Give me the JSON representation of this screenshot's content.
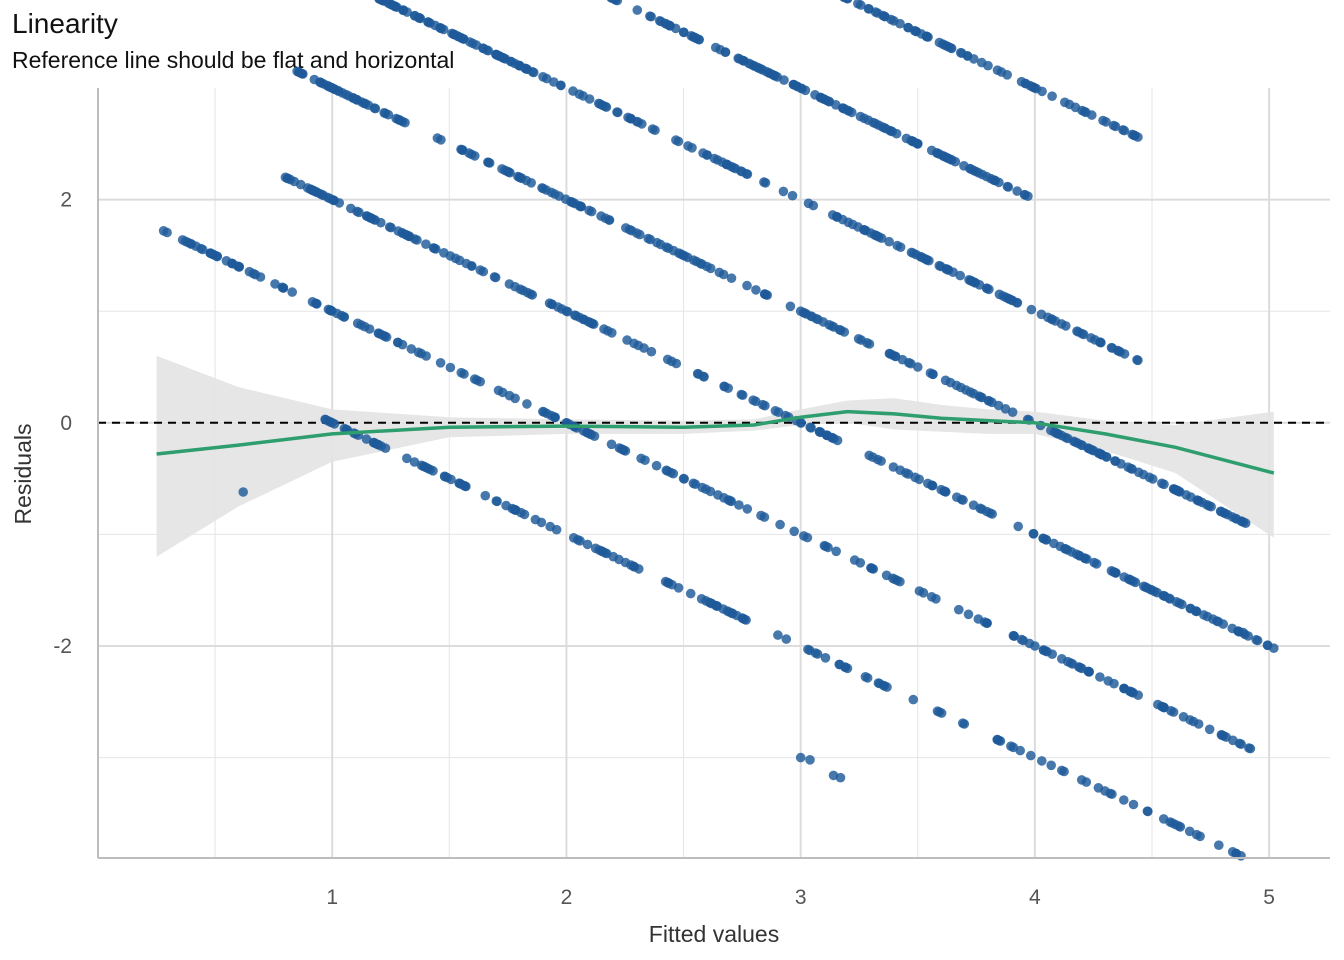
{
  "chart_data": {
    "type": "scatter",
    "title": "Linearity",
    "subtitle": "Reference line should be flat and horizontal",
    "xlabel": "Fitted values",
    "ylabel": "Residuals",
    "xlim": [
      0.0,
      5.26
    ],
    "ylim": [
      -3.9,
      3.0
    ],
    "x_ticks": [
      1,
      2,
      3,
      4,
      5
    ],
    "x_tick_labels": [
      "1",
      "2",
      "3",
      "4",
      "5"
    ],
    "y_ticks": [
      -2,
      0,
      2
    ],
    "y_tick_labels": [
      "-2",
      "0",
      "2"
    ],
    "x_minor_gridlines": [
      0.5,
      1.5,
      2.5,
      3.5,
      4.5
    ],
    "y_minor_gridlines": [
      -3,
      -1,
      1
    ],
    "grid": true,
    "reference_line": {
      "y": 0,
      "style": "dashed"
    },
    "colors": {
      "points": "#1F5A9A",
      "smooth": "#2E9E6E",
      "band": "#E3E3E3",
      "grid": "#E5E5E5",
      "axis": "#BDBDBD"
    },
    "bands": [
      {
        "response_base": 1,
        "x": [
          0.97,
          1.55,
          2.2,
          3.2,
          4.2,
          4.88
        ],
        "points": 150
      },
      {
        "response_base": 2,
        "x": [
          0.28,
          0.93,
          1.3,
          1.95,
          2.5,
          3.3,
          4.0,
          4.55,
          4.92
        ],
        "points": 200
      },
      {
        "response_base": 3,
        "x": [
          0.8,
          1.4,
          2.1,
          3.0,
          3.6,
          4.4,
          5.02
        ],
        "points": 220
      },
      {
        "response_base": 4,
        "x": [
          0.85,
          1.18,
          1.8,
          2.3,
          3.0,
          3.5,
          4.1,
          4.6,
          4.9
        ],
        "points": 230
      },
      {
        "response_base": 5,
        "x": [
          1.2,
          1.55,
          1.9,
          2.6,
          3.3,
          3.9,
          4.44
        ],
        "points": 200
      },
      {
        "response_base": 6,
        "x": [
          1.3,
          1.8,
          2.5,
          3.1,
          3.5,
          3.97
        ],
        "points": 180
      },
      {
        "response_base": 7,
        "x": [
          2.3,
          2.6,
          2.75,
          3.2,
          3.8,
          4.44
        ],
        "points": 150
      }
    ],
    "extra_points": [
      {
        "x": 1.3,
        "y": 2.7
      },
      {
        "x": 1.55,
        "y": 2.45
      },
      {
        "x": 0.62,
        "y": -0.62
      },
      {
        "x": 4.6,
        "y": -3.6
      },
      {
        "x": 4.89,
        "y": -1.88
      },
      {
        "x": 3.0,
        "y": -3.0
      },
      {
        "x": 3.04,
        "y": -3.02
      },
      {
        "x": 3.14,
        "y": -3.16
      },
      {
        "x": 3.17,
        "y": -3.18
      },
      {
        "x": 4.38,
        "y": -2.38
      },
      {
        "x": 4.2,
        "y": -2.2
      },
      {
        "x": 4.23,
        "y": -2.23
      }
    ],
    "smooth": {
      "x": [
        0.25,
        0.6,
        1.0,
        1.5,
        2.0,
        2.5,
        2.8,
        3.0,
        3.2,
        3.4,
        3.6,
        3.8,
        4.0,
        4.3,
        4.6,
        5.02
      ],
      "y": [
        -0.28,
        -0.2,
        -0.1,
        -0.04,
        -0.03,
        -0.04,
        -0.02,
        0.05,
        0.1,
        0.08,
        0.04,
        0.02,
        0.0,
        -0.1,
        -0.22,
        -0.45
      ],
      "ci_upper": [
        0.6,
        0.32,
        0.12,
        0.05,
        0.03,
        0.02,
        0.03,
        0.12,
        0.2,
        0.22,
        0.16,
        0.12,
        0.1,
        0.02,
        -0.02,
        0.1
      ],
      "ci_lower": [
        -1.2,
        -0.75,
        -0.35,
        -0.13,
        -0.1,
        -0.1,
        -0.07,
        -0.02,
        0.0,
        -0.06,
        -0.08,
        -0.1,
        -0.1,
        -0.25,
        -0.45,
        -1.03
      ]
    }
  }
}
